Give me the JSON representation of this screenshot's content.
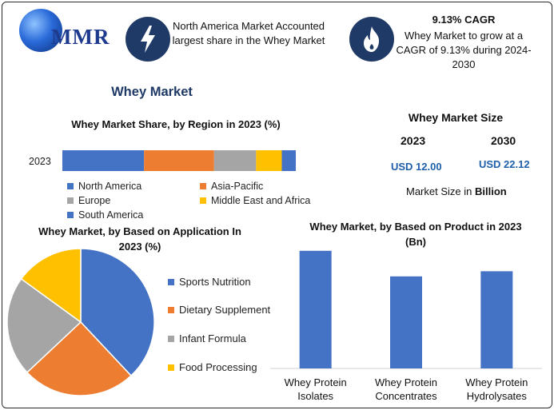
{
  "header": {
    "logo_text": "MMR",
    "highlight1_text": "North America Market Accounted largest share in the Whey Market",
    "highlight2_title": "9.13% CAGR",
    "highlight2_text": "Whey Market to grow at a CAGR of 9.13% during 2024-2030",
    "icon1": "lightning-icon",
    "icon2": "flame-icon"
  },
  "main_title": "Whey Market",
  "market_size": {
    "title": "Whey Market Size",
    "years": [
      "2023",
      "2030"
    ],
    "values": [
      "USD 12.00",
      "USD 22.12"
    ],
    "note_prefix": "Market Size in ",
    "note_unit": "Billion"
  },
  "chart_data": [
    {
      "type": "bar",
      "orientation": "horizontal-stacked",
      "title": "Whey Market Share, by Region in 2023 (%)",
      "categories": [
        "2023"
      ],
      "series": [
        {
          "name": "North America",
          "values": [
            35
          ],
          "color": "#4472c4"
        },
        {
          "name": "Asia-Pacific",
          "values": [
            30
          ],
          "color": "#ed7d31"
        },
        {
          "name": "Europe",
          "values": [
            18
          ],
          "color": "#a5a5a5"
        },
        {
          "name": "Middle East and Africa",
          "values": [
            11
          ],
          "color": "#ffc000"
        },
        {
          "name": "South America",
          "values": [
            6
          ],
          "color": "#4472c4"
        }
      ],
      "xlim": [
        0,
        100
      ],
      "legend_position": "bottom"
    },
    {
      "type": "pie",
      "title": "Whey Market, by Based on Application In 2023 (%)",
      "labels": [
        "Sports Nutrition",
        "Dietary Supplement",
        "Infant Formula",
        "Food Processing"
      ],
      "values": [
        38,
        25,
        22,
        15
      ],
      "colors": [
        "#4472c4",
        "#ed7d31",
        "#a5a5a5",
        "#ffc000"
      ],
      "legend_position": "right"
    },
    {
      "type": "bar",
      "title": "Whey Market, by Based on Product in 2023 (Bn)",
      "categories": [
        "Whey Protein Isolates",
        "Whey Protein Concentrates",
        "Whey Protein Hydrolysates"
      ],
      "category_lines": [
        [
          "Whey Protein",
          "Isolates"
        ],
        [
          "Whey Protein",
          "Concentrates"
        ],
        [
          "Whey Protein",
          "Hydrolysates"
        ]
      ],
      "values": [
        4.6,
        3.6,
        3.8
      ],
      "color": "#4472c4",
      "ylim": [
        0,
        5
      ],
      "grid": false
    }
  ]
}
